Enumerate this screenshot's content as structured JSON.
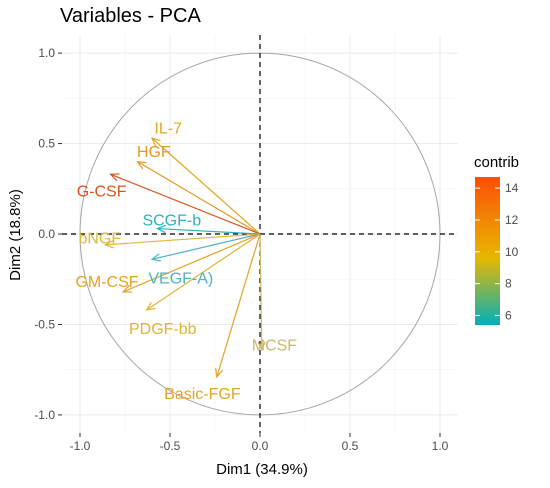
{
  "chart_data": {
    "type": "scatter",
    "subtype": "pca-variable-correlation-circle",
    "title": "Variables - PCA",
    "xlabel": "Dim1 (34.9%)",
    "ylabel": "Dim2 (18.8%)",
    "xlim": [
      -1.1,
      1.1
    ],
    "ylim": [
      -1.1,
      1.1
    ],
    "x_ticks": [
      -1.0,
      -0.5,
      0.0,
      0.5,
      1.0
    ],
    "y_ticks": [
      -1.0,
      -0.5,
      0.0,
      0.5,
      1.0
    ],
    "x_tick_labels": [
      "-1.0",
      "-0.5",
      "0.0",
      "0.5",
      "1.0"
    ],
    "y_tick_labels": [
      "-1.0",
      "-0.5",
      "0.0",
      "0.5",
      "1.0"
    ],
    "grid": true,
    "unit_circle": true,
    "legend": {
      "title": "contrib",
      "placement": "right",
      "ticks": [
        6,
        8,
        10,
        12,
        14
      ],
      "range": [
        5.4,
        14.7
      ],
      "gradient": [
        "#00AFBB",
        "#E7B800",
        "#FC4E07"
      ]
    },
    "variables": [
      {
        "name": "IL-7",
        "x": -0.6,
        "y": 0.53,
        "contrib": 10.6,
        "color": "#E5A620",
        "label_x": -0.51,
        "label_y": 0.59
      },
      {
        "name": "HGF",
        "x": -0.68,
        "y": 0.4,
        "contrib": 10.9,
        "color": "#E39A21",
        "label_x": -0.59,
        "label_y": 0.46
      },
      {
        "name": "G-CSF",
        "x": -0.83,
        "y": 0.33,
        "contrib": 14.5,
        "color": "#D9541D",
        "label_x": -0.88,
        "label_y": 0.24
      },
      {
        "name": "SCGF-b",
        "x": -0.57,
        "y": 0.03,
        "contrib": 6.2,
        "color": "#2EB1BD",
        "label_x": -0.49,
        "label_y": 0.08
      },
      {
        "name": "bNGF",
        "x": -0.86,
        "y": -0.06,
        "contrib": 9.5,
        "color": "#D9BA3E",
        "label_x": -0.89,
        "label_y": -0.02
      },
      {
        "name": "GM-CSF",
        "x": -0.76,
        "y": -0.32,
        "contrib": 10.8,
        "color": "#E4A21F",
        "label_x": -0.85,
        "label_y": -0.26
      },
      {
        "name": "VEGF-A)",
        "x": -0.6,
        "y": -0.14,
        "contrib": 7.5,
        "color": "#4DB2C3",
        "label_x": -0.44,
        "label_y": -0.24
      },
      {
        "name": "PDGF-bb",
        "x": -0.63,
        "y": -0.42,
        "contrib": 9.9,
        "color": "#E0B72E",
        "label_x": -0.54,
        "label_y": -0.52
      },
      {
        "name": "MCSF",
        "x": 0.01,
        "y": -0.64,
        "contrib": 9.0,
        "color": "#C9B96C",
        "label_x": 0.08,
        "label_y": -0.61
      },
      {
        "name": "Basic-FGF",
        "x": -0.24,
        "y": -0.79,
        "contrib": 10.7,
        "color": "#E3A324",
        "label_x": -0.32,
        "label_y": -0.88
      }
    ]
  }
}
